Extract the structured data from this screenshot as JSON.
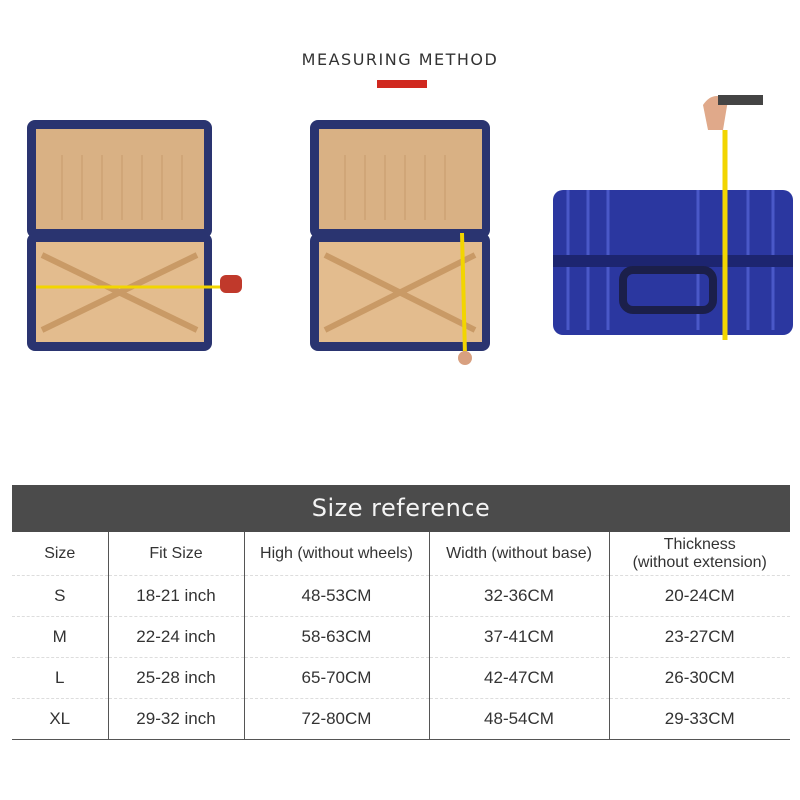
{
  "heading": {
    "title": "MEASURING METHOD",
    "accent_color": "#d0281f"
  },
  "photos": [
    {
      "subject": "open suitcase measured across width",
      "icon": "suitcase-open-width"
    },
    {
      "subject": "open suitcase measured vertically",
      "icon": "suitcase-open-height"
    },
    {
      "subject": "closed blue suitcase measured for thickness",
      "icon": "suitcase-closed-thickness"
    }
  ],
  "size_table": {
    "title": "Size reference",
    "columns": [
      "Size",
      "Fit Size",
      "High (without wheels)",
      "Width (without base)",
      "Thickness\n(without extension)"
    ],
    "column_lines": {
      "thickness_1": "Thickness",
      "thickness_2": "(without extension)"
    },
    "rows": [
      [
        "S",
        "18-21 inch",
        "48-53CM",
        "32-36CM",
        "20-24CM"
      ],
      [
        "M",
        "22-24 inch",
        "58-63CM",
        "37-41CM",
        "23-27CM"
      ],
      [
        "L",
        "25-28 inch",
        "65-70CM",
        "42-47CM",
        "26-30CM"
      ],
      [
        "XL",
        "29-32 inch",
        "72-80CM",
        "48-54CM",
        "29-33CM"
      ]
    ]
  }
}
